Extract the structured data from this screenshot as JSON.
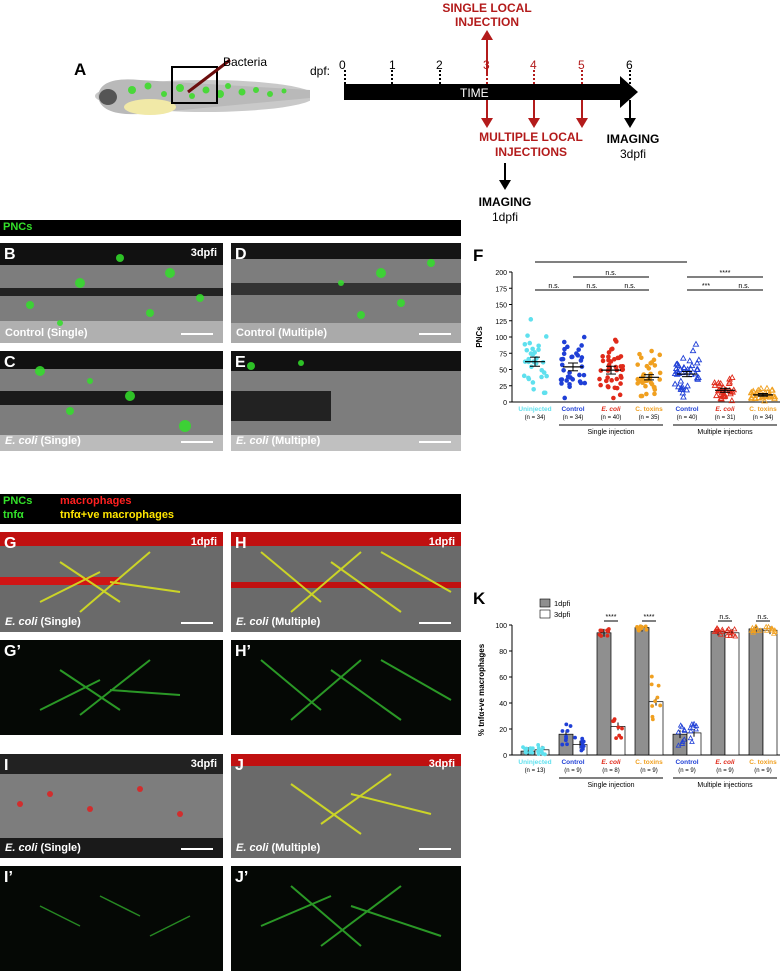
{
  "panelA": {
    "letter": "A",
    "bacteria_label": "Bacteria",
    "dpf_label": "dpf:",
    "days": [
      "0",
      "1",
      "2",
      "3",
      "4",
      "5",
      "6"
    ],
    "time_label": "TIME",
    "single_injection": "SINGLE LOCAL INJECTION",
    "single_injection_l1": "SINGLE LOCAL",
    "single_injection_l2": "INJECTION",
    "multiple_l1": "MULTIPLE LOCAL",
    "multiple_l2": "INJECTIONS",
    "imaging_1": "IMAGING",
    "imaging_1_time": "1dpfi",
    "imaging_2": "IMAGING",
    "imaging_2_time": "3dpfi",
    "red_color": "#b31b1b"
  },
  "header1": {
    "pncs": "PNCs"
  },
  "header2": {
    "pncs": "PNCs",
    "macrophages": "macrophages",
    "tnfa": "tnfα",
    "tnfa_macro": "tnfα+ve macrophages"
  },
  "micro": {
    "B": {
      "letter": "B",
      "time": "3dpfi",
      "cap_main": "Control (Single)"
    },
    "C": {
      "letter": "C",
      "cap_ital": "E. coli",
      "cap_rest": " (Single)"
    },
    "D": {
      "letter": "D",
      "cap_main": "Control (Multiple)"
    },
    "E": {
      "letter": "E",
      "cap_ital": "E. coli",
      "cap_rest": " (Multiple)"
    },
    "G": {
      "letter": "G",
      "time": "1dpfi",
      "cap_ital": "E. coli",
      "cap_rest": " (Single)"
    },
    "H": {
      "letter": "H",
      "time": "1dpfi",
      "cap_ital": "E. coli",
      "cap_rest": " (Multiple)"
    },
    "G2": {
      "letter": "G’"
    },
    "H2": {
      "letter": "H’"
    },
    "I": {
      "letter": "I",
      "time": "3dpfi",
      "cap_ital": "E. coli",
      "cap_rest": " (Single)"
    },
    "J": {
      "letter": "J",
      "time": "3dpfi",
      "cap_ital": "E. coli",
      "cap_rest": " (Multiple)"
    },
    "I2": {
      "letter": "I’"
    },
    "J2": {
      "letter": "J’"
    }
  },
  "colors": {
    "uninjected": "#5fe0ee",
    "control": "#1f3fd6",
    "ecoli": "#e02a1a",
    "ctoxins": "#f0a020",
    "gfp": "#33e02a"
  },
  "chart_data": [
    {
      "panel": "F",
      "type": "scatter",
      "ylabel": "PNCs",
      "ylim": [
        0,
        200
      ],
      "yticks": [
        "0",
        "25",
        "50",
        "75",
        "100",
        "125",
        "150",
        "175",
        "200"
      ],
      "groups": [
        {
          "name": "Uninjected",
          "n": "(n = 34)",
          "mean": 62,
          "sem": 7,
          "marker": "circle",
          "color": "#5fe0ee"
        },
        {
          "name": "Control",
          "n": "(n = 34)",
          "mean": 54,
          "sem": 6,
          "marker": "circle",
          "color": "#1f3fd6"
        },
        {
          "name": "E. coli",
          "n": "(n = 40)",
          "mean": 49,
          "sem": 6,
          "marker": "circle",
          "color": "#e02a1a",
          "italic": true
        },
        {
          "name": "C. toxins",
          "n": "(n = 35)",
          "mean": 38,
          "sem": 4,
          "marker": "circle",
          "color": "#f0a020"
        },
        {
          "name": "Control",
          "n": "(n = 40)",
          "mean": 43,
          "sem": 4,
          "marker": "triangle",
          "color": "#1f3fd6"
        },
        {
          "name": "E. coli",
          "n": "(n = 31)",
          "mean": 18,
          "sem": 3,
          "marker": "triangle",
          "color": "#e02a1a",
          "italic": true
        },
        {
          "name": "C. toxins",
          "n": "(n = 34)",
          "mean": 11,
          "sem": 2,
          "marker": "triangle",
          "color": "#f0a020"
        }
      ],
      "group_labels": [
        "Single injection",
        "Multiple injections"
      ],
      "significance": [
        {
          "from": 0,
          "to": 4,
          "label": "n.s."
        },
        {
          "from": 0,
          "to": 1,
          "label": "n.s."
        },
        {
          "from": 1,
          "to": 2,
          "label": "n.s."
        },
        {
          "from": 1,
          "to": 3,
          "label": "n.s."
        },
        {
          "from": 2,
          "to": 3,
          "label": "n.s."
        },
        {
          "from": 4,
          "to": 6,
          "label": "****"
        },
        {
          "from": 4,
          "to": 5,
          "label": "***"
        },
        {
          "from": 5,
          "to": 6,
          "label": "n.s."
        }
      ]
    },
    {
      "panel": "K",
      "type": "bar",
      "ylabel": "% tnfα+ve macrophages",
      "ylim": [
        0,
        100
      ],
      "yticks": [
        "0",
        "20",
        "40",
        "60",
        "80",
        "100"
      ],
      "legend": [
        "1dpfi",
        "3dpfi"
      ],
      "categories": [
        {
          "name": "Uninjected",
          "n": "(n = 13)",
          "color": "#5fe0ee"
        },
        {
          "name": "Control",
          "n": "(n = 9)",
          "color": "#1f3fd6"
        },
        {
          "name": "E. coli",
          "n": "(n = 8)",
          "color": "#e02a1a",
          "italic": true
        },
        {
          "name": "C. toxins",
          "n": "(n = 9)",
          "color": "#f0a020"
        },
        {
          "name": "Control",
          "n": "(n = 9)",
          "color": "#1f3fd6"
        },
        {
          "name": "E. coli",
          "n": "(n = 9)",
          "color": "#e02a1a",
          "italic": true
        },
        {
          "name": "C. toxins",
          "n": "(n = 9)",
          "color": "#f0a020"
        }
      ],
      "series": [
        {
          "name": "1dpfi",
          "values": [
            3,
            16,
            94,
            98,
            16,
            95,
            97
          ]
        },
        {
          "name": "3dpfi",
          "values": [
            4,
            8,
            22,
            41,
            17,
            94,
            96
          ]
        }
      ],
      "group_labels": [
        "Single injection",
        "Multiple injections"
      ],
      "significance": [
        "",
        "",
        "****",
        "****",
        "",
        "n.s.",
        "n.s."
      ]
    }
  ]
}
